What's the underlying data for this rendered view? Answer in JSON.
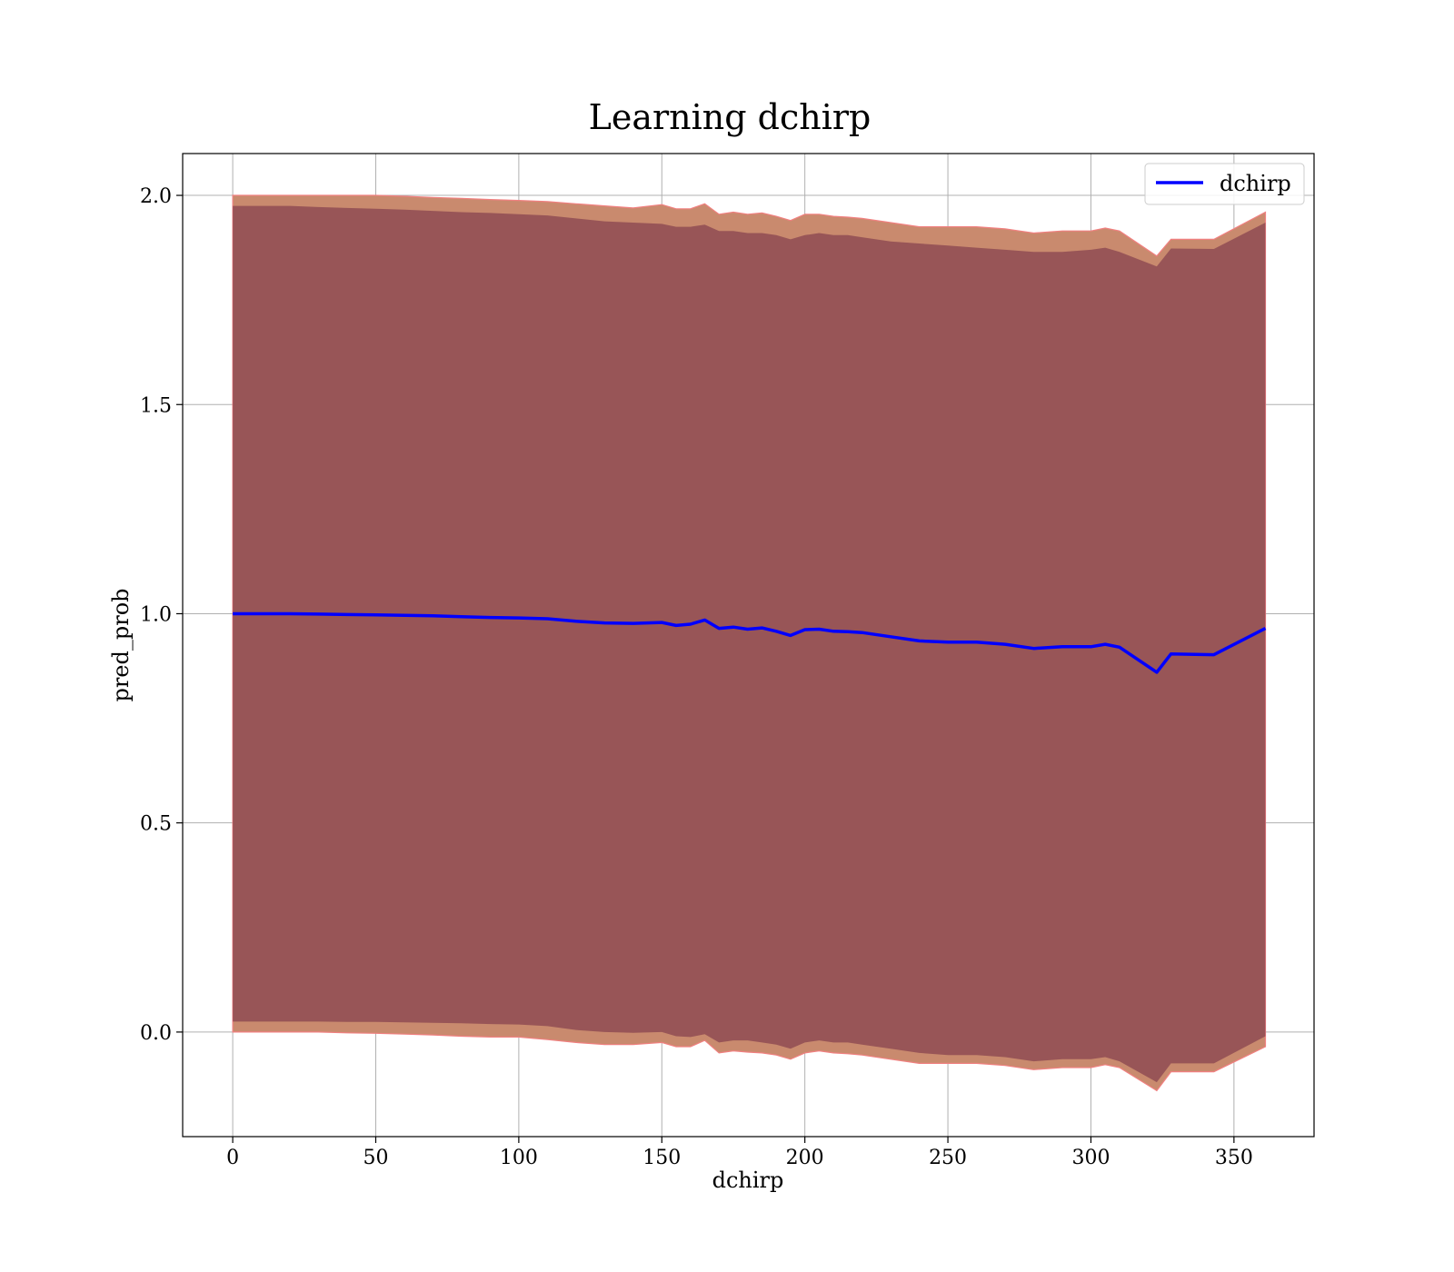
{
  "chart_data": {
    "type": "line",
    "title": "Learning dchirp",
    "xlabel": "dchirp",
    "ylabel": "pred_prob",
    "xlim": [
      -17.5,
      378
    ],
    "ylim": [
      -0.25,
      2.1
    ],
    "xticks": [
      0,
      50,
      100,
      150,
      200,
      250,
      300,
      350
    ],
    "yticks": [
      0.0,
      0.5,
      1.0,
      1.5,
      2.0
    ],
    "xtick_labels": [
      "0",
      "50",
      "100",
      "150",
      "200",
      "250",
      "300",
      "350"
    ],
    "ytick_labels": [
      "0.0",
      "0.5",
      "1.0",
      "1.5",
      "2.0"
    ],
    "grid": true,
    "legend": {
      "position": "top-right",
      "entries": [
        "dchirp"
      ]
    },
    "colors": {
      "line": "#0000ff",
      "inner_band": "#7a3648",
      "outer_band": "#c98a6e",
      "outer_band_edge": "#f08080",
      "grid": "#b0b0b0"
    },
    "series": [
      {
        "name": "dchirp",
        "x": [
          0,
          10,
          20,
          30,
          40,
          50,
          60,
          70,
          80,
          90,
          100,
          110,
          120,
          130,
          140,
          150,
          155,
          160,
          165,
          170,
          175,
          180,
          185,
          190,
          195,
          200,
          205,
          210,
          215,
          220,
          230,
          240,
          250,
          260,
          270,
          280,
          290,
          300,
          305,
          310,
          323,
          328,
          343,
          361
        ],
        "y": [
          1.0,
          1.0,
          1.0,
          0.999,
          0.998,
          0.997,
          0.996,
          0.995,
          0.993,
          0.991,
          0.99,
          0.988,
          0.982,
          0.978,
          0.977,
          0.979,
          0.972,
          0.975,
          0.985,
          0.965,
          0.968,
          0.963,
          0.966,
          0.958,
          0.948,
          0.962,
          0.963,
          0.958,
          0.957,
          0.955,
          0.945,
          0.935,
          0.932,
          0.932,
          0.927,
          0.917,
          0.921,
          0.921,
          0.927,
          0.92,
          0.86,
          0.904,
          0.902,
          0.965
        ],
        "inner_upper": [
          1.975,
          1.975,
          1.975,
          1.972,
          1.97,
          1.968,
          1.966,
          1.963,
          1.96,
          1.958,
          1.955,
          1.952,
          1.945,
          1.938,
          1.935,
          1.932,
          1.925,
          1.925,
          1.93,
          1.915,
          1.915,
          1.91,
          1.91,
          1.905,
          1.895,
          1.905,
          1.91,
          1.905,
          1.905,
          1.9,
          1.89,
          1.885,
          1.88,
          1.875,
          1.87,
          1.865,
          1.865,
          1.87,
          1.875,
          1.865,
          1.83,
          1.873,
          1.872,
          1.935
        ],
        "inner_lower": [
          0.025,
          0.025,
          0.025,
          0.025,
          0.024,
          0.024,
          0.023,
          0.022,
          0.021,
          0.019,
          0.018,
          0.014,
          0.005,
          0.0,
          -0.002,
          0.0,
          -0.01,
          -0.012,
          -0.005,
          -0.025,
          -0.02,
          -0.02,
          -0.025,
          -0.03,
          -0.04,
          -0.025,
          -0.02,
          -0.025,
          -0.025,
          -0.03,
          -0.04,
          -0.05,
          -0.055,
          -0.055,
          -0.06,
          -0.07,
          -0.065,
          -0.065,
          -0.06,
          -0.07,
          -0.12,
          -0.075,
          -0.075,
          -0.01
        ],
        "outer_upper": [
          2.0,
          2.0,
          2.0,
          2.0,
          2.0,
          2.0,
          1.998,
          1.995,
          1.993,
          1.99,
          1.988,
          1.985,
          1.98,
          1.975,
          1.97,
          1.978,
          1.968,
          1.968,
          1.98,
          1.955,
          1.96,
          1.955,
          1.958,
          1.95,
          1.94,
          1.955,
          1.955,
          1.95,
          1.948,
          1.945,
          1.935,
          1.925,
          1.925,
          1.925,
          1.92,
          1.91,
          1.915,
          1.915,
          1.922,
          1.915,
          1.855,
          1.895,
          1.895,
          1.96
        ],
        "outer_lower": [
          0.0,
          0.0,
          0.0,
          0.0,
          -0.002,
          -0.003,
          -0.005,
          -0.007,
          -0.01,
          -0.012,
          -0.012,
          -0.018,
          -0.025,
          -0.03,
          -0.03,
          -0.025,
          -0.035,
          -0.035,
          -0.02,
          -0.05,
          -0.045,
          -0.048,
          -0.05,
          -0.055,
          -0.065,
          -0.05,
          -0.045,
          -0.05,
          -0.052,
          -0.055,
          -0.065,
          -0.075,
          -0.075,
          -0.075,
          -0.08,
          -0.09,
          -0.085,
          -0.085,
          -0.078,
          -0.085,
          -0.14,
          -0.095,
          -0.095,
          -0.035
        ]
      }
    ]
  }
}
